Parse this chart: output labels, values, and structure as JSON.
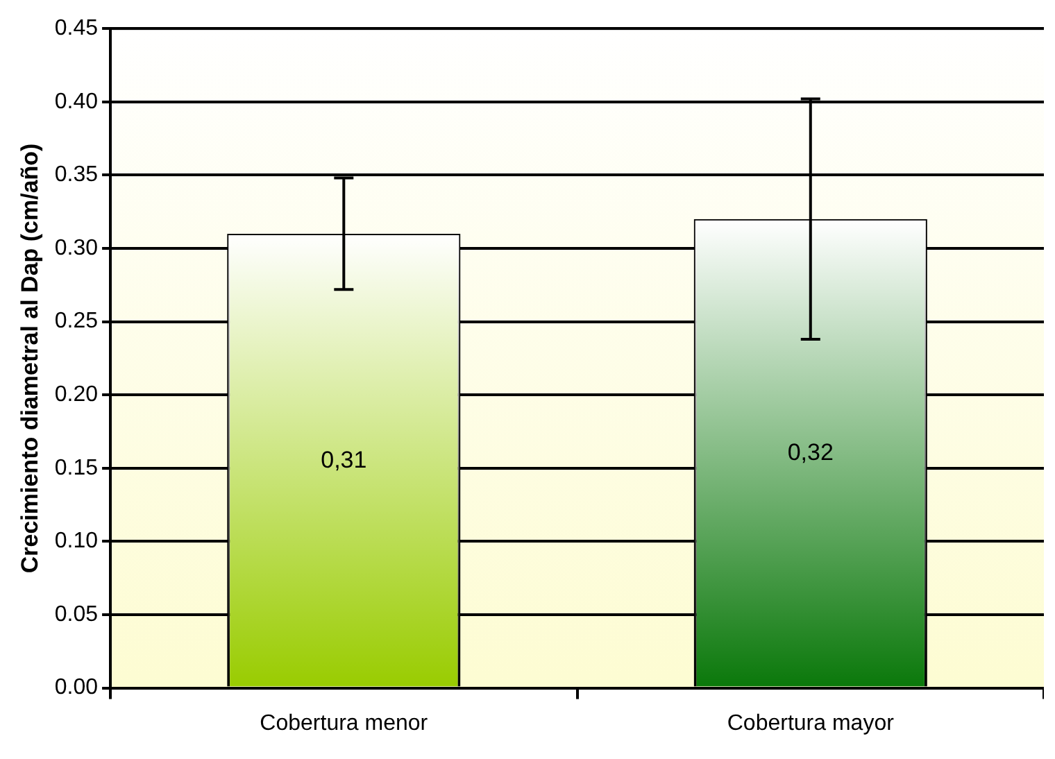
{
  "chart_data": {
    "type": "bar",
    "ylabel": "Crecimiento diametral al Dap (cm/año)",
    "categories": [
      "Cobertura menor",
      "Cobertura mayor"
    ],
    "values": [
      0.31,
      0.32
    ],
    "colors": [
      "#99cc00",
      "#0a780a"
    ],
    "errors": [
      0.038,
      0.082
    ],
    "value_labels": [
      "0,31",
      "0,32"
    ],
    "ylim": [
      0,
      0.45
    ],
    "yticks": [
      {
        "value": 0,
        "label": "0.00"
      },
      {
        "value": 0.05,
        "label": "0.05"
      },
      {
        "value": 0.1,
        "label": "0.10"
      },
      {
        "value": 0.15,
        "label": "0.15"
      },
      {
        "value": 0.2,
        "label": "0.20"
      },
      {
        "value": 0.25,
        "label": "0.25"
      },
      {
        "value": 0.3,
        "label": "0.30"
      },
      {
        "value": 0.35,
        "label": "0.35"
      },
      {
        "value": 0.4,
        "label": "0.40"
      },
      {
        "value": 0.45,
        "label": "0.45"
      }
    ],
    "grid": "y",
    "legend": false
  }
}
